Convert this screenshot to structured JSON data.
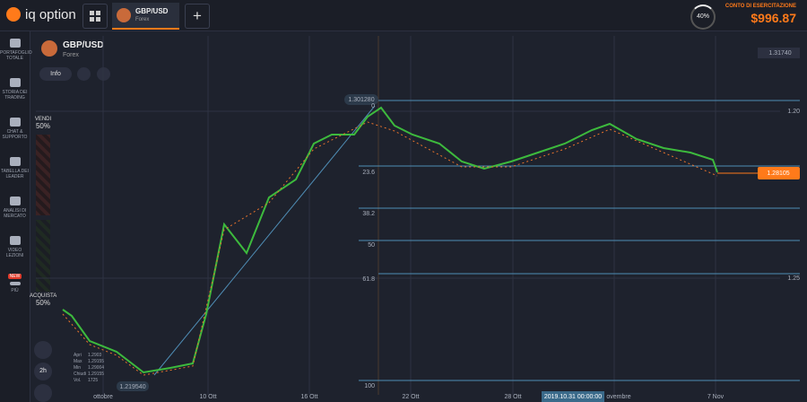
{
  "header": {
    "logo": "iq option",
    "tab": {
      "title": "GBP/USD",
      "subtitle": "Forex"
    },
    "add": "+",
    "gauge": "40%",
    "account": {
      "label": "CONTO DI ESERCITAZIONE",
      "balance": "$996.87"
    }
  },
  "sidebar": [
    "PORTAFOGLIO TOTALE",
    "STORIA DEI TRADING",
    "CHAT & SUPPORTO",
    "TABELLA DEI LEADER",
    "ANALISI DI MERCATO",
    "VIDEO LEZIONI",
    "NEW",
    "PIÙ"
  ],
  "trade": {
    "sell": {
      "label": "VENDI",
      "percent": "50%"
    },
    "buy": {
      "label": "ACQUISTA",
      "percent": "50%"
    },
    "timeframe": "2h"
  },
  "chart": {
    "title": "GBP/USD",
    "subtitle": "Forex",
    "info": "Info",
    "price_labels": {
      "top": "1.31740",
      "high": "1.301280",
      "low": "1.219540",
      "current": "1.28105"
    },
    "axis_labels": [
      "1.20",
      "1.25"
    ],
    "fib_levels": [
      "0",
      "23.6",
      "38.2",
      "50",
      "61.8",
      "100"
    ],
    "x_labels": [
      "ottobre",
      "10 Ott",
      "16 Ott",
      "22 Ott",
      "28 Ott",
      "2019.10.31 00:00:00",
      "ovembre",
      "7 Nov"
    ],
    "ohlc": [
      [
        "Apri",
        "1.2903"
      ],
      [
        "Max",
        "1.29155"
      ],
      [
        "Min",
        "1.29004"
      ],
      [
        "Chiudi",
        "1.29155"
      ],
      [
        "Vol.",
        "1725"
      ]
    ]
  }
}
